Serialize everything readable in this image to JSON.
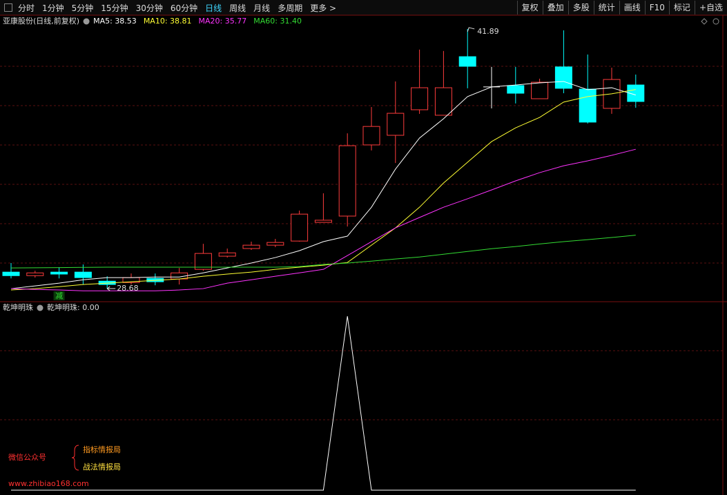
{
  "toolbar": {
    "left": [
      "分时",
      "1分钟",
      "5分钟",
      "15分钟",
      "30分钟",
      "60分钟",
      "日线",
      "周线",
      "月线",
      "多周期",
      "更多 >"
    ],
    "active": 6,
    "right": [
      "复权",
      "叠加",
      "多股",
      "统计",
      "画线",
      "F10",
      "标记",
      "+自选"
    ]
  },
  "watermark": {
    "account": "微信公众号",
    "names": [
      "指标情报局",
      "战法情报局"
    ],
    "url": "www.zhibiao168.com"
  },
  "chart_data": [
    {
      "type": "candlestick",
      "title": "亚康股份(日线,前复权)",
      "open": [
        29.52,
        29.34,
        29.52,
        29.52,
        29.06,
        28.99,
        29.2,
        29.17,
        29.66,
        30.33,
        30.72,
        30.89,
        31.1,
        32.05,
        32.37,
        35.99,
        36.48,
        37.78,
        37.5,
        40.48,
        38.94,
        39.01,
        38.34,
        39.96,
        38.83,
        37.85,
        39.04
      ],
      "close": [
        29.34,
        29.48,
        29.42,
        29.24,
        28.89,
        29.24,
        29.03,
        29.48,
        30.47,
        30.5,
        30.89,
        31.03,
        32.47,
        32.16,
        35.95,
        36.93,
        37.6,
        38.9,
        38.9,
        39.99,
        38.94,
        38.62,
        39.18,
        38.87,
        37.15,
        39.32,
        38.2
      ],
      "high": [
        29.98,
        29.59,
        29.77,
        29.91,
        29.31,
        29.45,
        29.45,
        29.73,
        30.96,
        30.72,
        31.07,
        31.21,
        32.65,
        33.53,
        36.58,
        37.92,
        39.22,
        40.84,
        40.77,
        41.89,
        39.96,
        39.96,
        39.36,
        41.82,
        40.59,
        39.92,
        39.57
      ],
      "low": [
        29.2,
        29.24,
        29.2,
        28.89,
        28.68,
        28.89,
        28.85,
        28.89,
        29.59,
        30.26,
        30.65,
        30.79,
        31.07,
        32.05,
        31.84,
        35.71,
        35.07,
        37.57,
        37.5,
        38.87,
        37.85,
        38.1,
        38.34,
        38.62,
        37.08,
        37.57,
        37.88
      ],
      "up_color": "#ff3c3c",
      "down_color": "#00ffff",
      "flat_color": "#ffffff",
      "ylim": [
        28.05,
        42.59
      ],
      "series": [
        {
          "name": "MA5",
          "color": "#ffffff",
          "legend_value": "38.53",
          "values": [
            28.68,
            28.82,
            28.96,
            29.13,
            29.24,
            29.24,
            29.27,
            29.27,
            29.48,
            29.73,
            29.98,
            30.26,
            30.61,
            31.07,
            31.35,
            32.82,
            34.76,
            36.34,
            37.32,
            38.45,
            38.94,
            39.04,
            39.15,
            39.22,
            38.8,
            38.9,
            38.53
          ]
        },
        {
          "name": "MA10",
          "color": "#ffff33",
          "legend_value": "38.81",
          "values": [
            28.61,
            28.68,
            28.78,
            28.89,
            28.96,
            29.03,
            29.1,
            29.17,
            29.31,
            29.42,
            29.52,
            29.66,
            29.77,
            29.87,
            30.01,
            30.89,
            31.77,
            32.82,
            34.05,
            35.11,
            36.16,
            36.86,
            37.39,
            38.17,
            38.45,
            38.59,
            38.81
          ]
        },
        {
          "name": "MA20",
          "color": "#ff33ff",
          "legend_value": "35.77",
          "values": [
            28.68,
            28.64,
            28.61,
            28.57,
            28.57,
            28.57,
            28.57,
            28.61,
            28.68,
            28.96,
            29.13,
            29.31,
            29.48,
            29.66,
            30.36,
            31.07,
            31.77,
            32.3,
            32.82,
            33.25,
            33.7,
            34.16,
            34.58,
            34.93,
            35.18,
            35.46,
            35.77
          ]
        },
        {
          "name": "MA60",
          "color": "#33dd33",
          "legend_value": "31.40",
          "values": [
            29.73,
            29.74,
            29.75,
            29.76,
            29.77,
            29.77,
            29.77,
            29.77,
            29.77,
            29.77,
            29.77,
            29.77,
            29.8,
            29.91,
            29.98,
            30.08,
            30.19,
            30.29,
            30.43,
            30.57,
            30.71,
            30.82,
            30.95,
            31.07,
            31.17,
            31.28,
            31.4
          ]
        }
      ],
      "annotations": [
        {
          "text": "41.89",
          "candle": 19,
          "at": "high"
        },
        {
          "text": "28.68",
          "candle": 4,
          "at": "low"
        },
        {
          "text": "减",
          "candle": 2,
          "at": "below"
        }
      ]
    },
    {
      "type": "line",
      "title": "乾坤明珠",
      "ylim": [
        0,
        1.04
      ],
      "series": [
        {
          "name": "乾坤明珠",
          "color": "#ffffff",
          "legend_value": "0.00",
          "values": [
            0,
            0,
            0,
            0,
            0,
            0,
            0,
            0,
            0,
            0,
            0,
            0,
            0,
            0,
            1,
            0,
            0,
            0,
            0,
            0,
            0,
            0,
            0,
            0,
            0,
            0,
            0
          ]
        }
      ]
    }
  ]
}
